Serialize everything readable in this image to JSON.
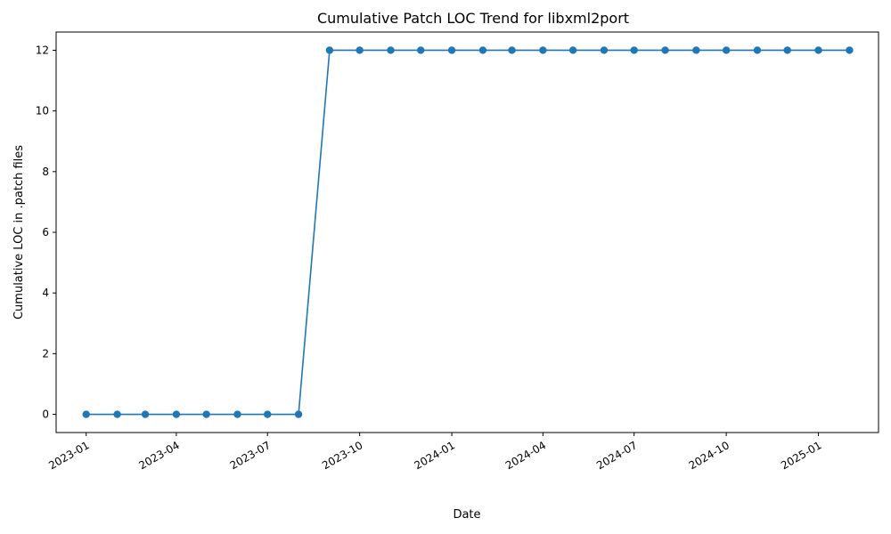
{
  "chart_data": {
    "type": "line",
    "title": "Cumulative Patch LOC Trend for libxml2port",
    "xlabel": "Date",
    "ylabel": "Cumulative LOC in .patch files",
    "color": "#1f77b4",
    "grid": false,
    "legend": false,
    "marker": "circle",
    "xlim": [
      "2022-12-02",
      "2025-03-02"
    ],
    "ylim": [
      -0.6,
      12.6
    ],
    "x_ticks": [
      "2023-01",
      "2023-04",
      "2023-07",
      "2023-10",
      "2024-01",
      "2024-04",
      "2024-07",
      "2024-10",
      "2025-01"
    ],
    "y_ticks": [
      0,
      2,
      4,
      6,
      8,
      10,
      12
    ],
    "series": [
      {
        "x": [
          "2023-01-01",
          "2023-02-01",
          "2023-03-01",
          "2023-04-01",
          "2023-05-01",
          "2023-06-01",
          "2023-07-01",
          "2023-08-01",
          "2023-09-01",
          "2023-10-01",
          "2023-11-01",
          "2023-12-01",
          "2024-01-01",
          "2024-02-01",
          "2024-03-01",
          "2024-04-01",
          "2024-05-01",
          "2024-06-01",
          "2024-07-01",
          "2024-08-01",
          "2024-09-01",
          "2024-10-01",
          "2024-11-01",
          "2024-12-01",
          "2025-01-01",
          "2025-02-01"
        ],
        "y": [
          0,
          0,
          0,
          0,
          0,
          0,
          0,
          0,
          12,
          12,
          12,
          12,
          12,
          12,
          12,
          12,
          12,
          12,
          12,
          12,
          12,
          12,
          12,
          12,
          12,
          12
        ]
      }
    ]
  }
}
